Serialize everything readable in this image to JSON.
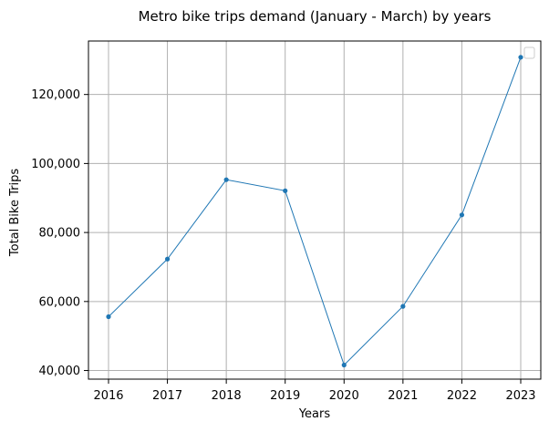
{
  "chart_data": {
    "type": "line",
    "title": "Metro bike trips demand (January - March) by years",
    "xlabel": "Years",
    "ylabel": "Total Bike Trips",
    "x": [
      "2016",
      "2017",
      "2018",
      "2019",
      "2020",
      "2021",
      "2022",
      "2023"
    ],
    "series": [
      {
        "values": [
          55600,
          72300,
          95300,
          92100,
          41600,
          58600,
          85100,
          130800
        ]
      }
    ],
    "ylim": [
      37500,
      135500
    ],
    "y_ticks": [
      40000,
      60000,
      80000,
      100000,
      120000
    ],
    "y_tick_labels": [
      "40,000",
      "60,000",
      "80,000",
      "100,000",
      "120,000"
    ],
    "grid": true,
    "legend": "top-right, empty",
    "line_color": "#1f77b4"
  }
}
